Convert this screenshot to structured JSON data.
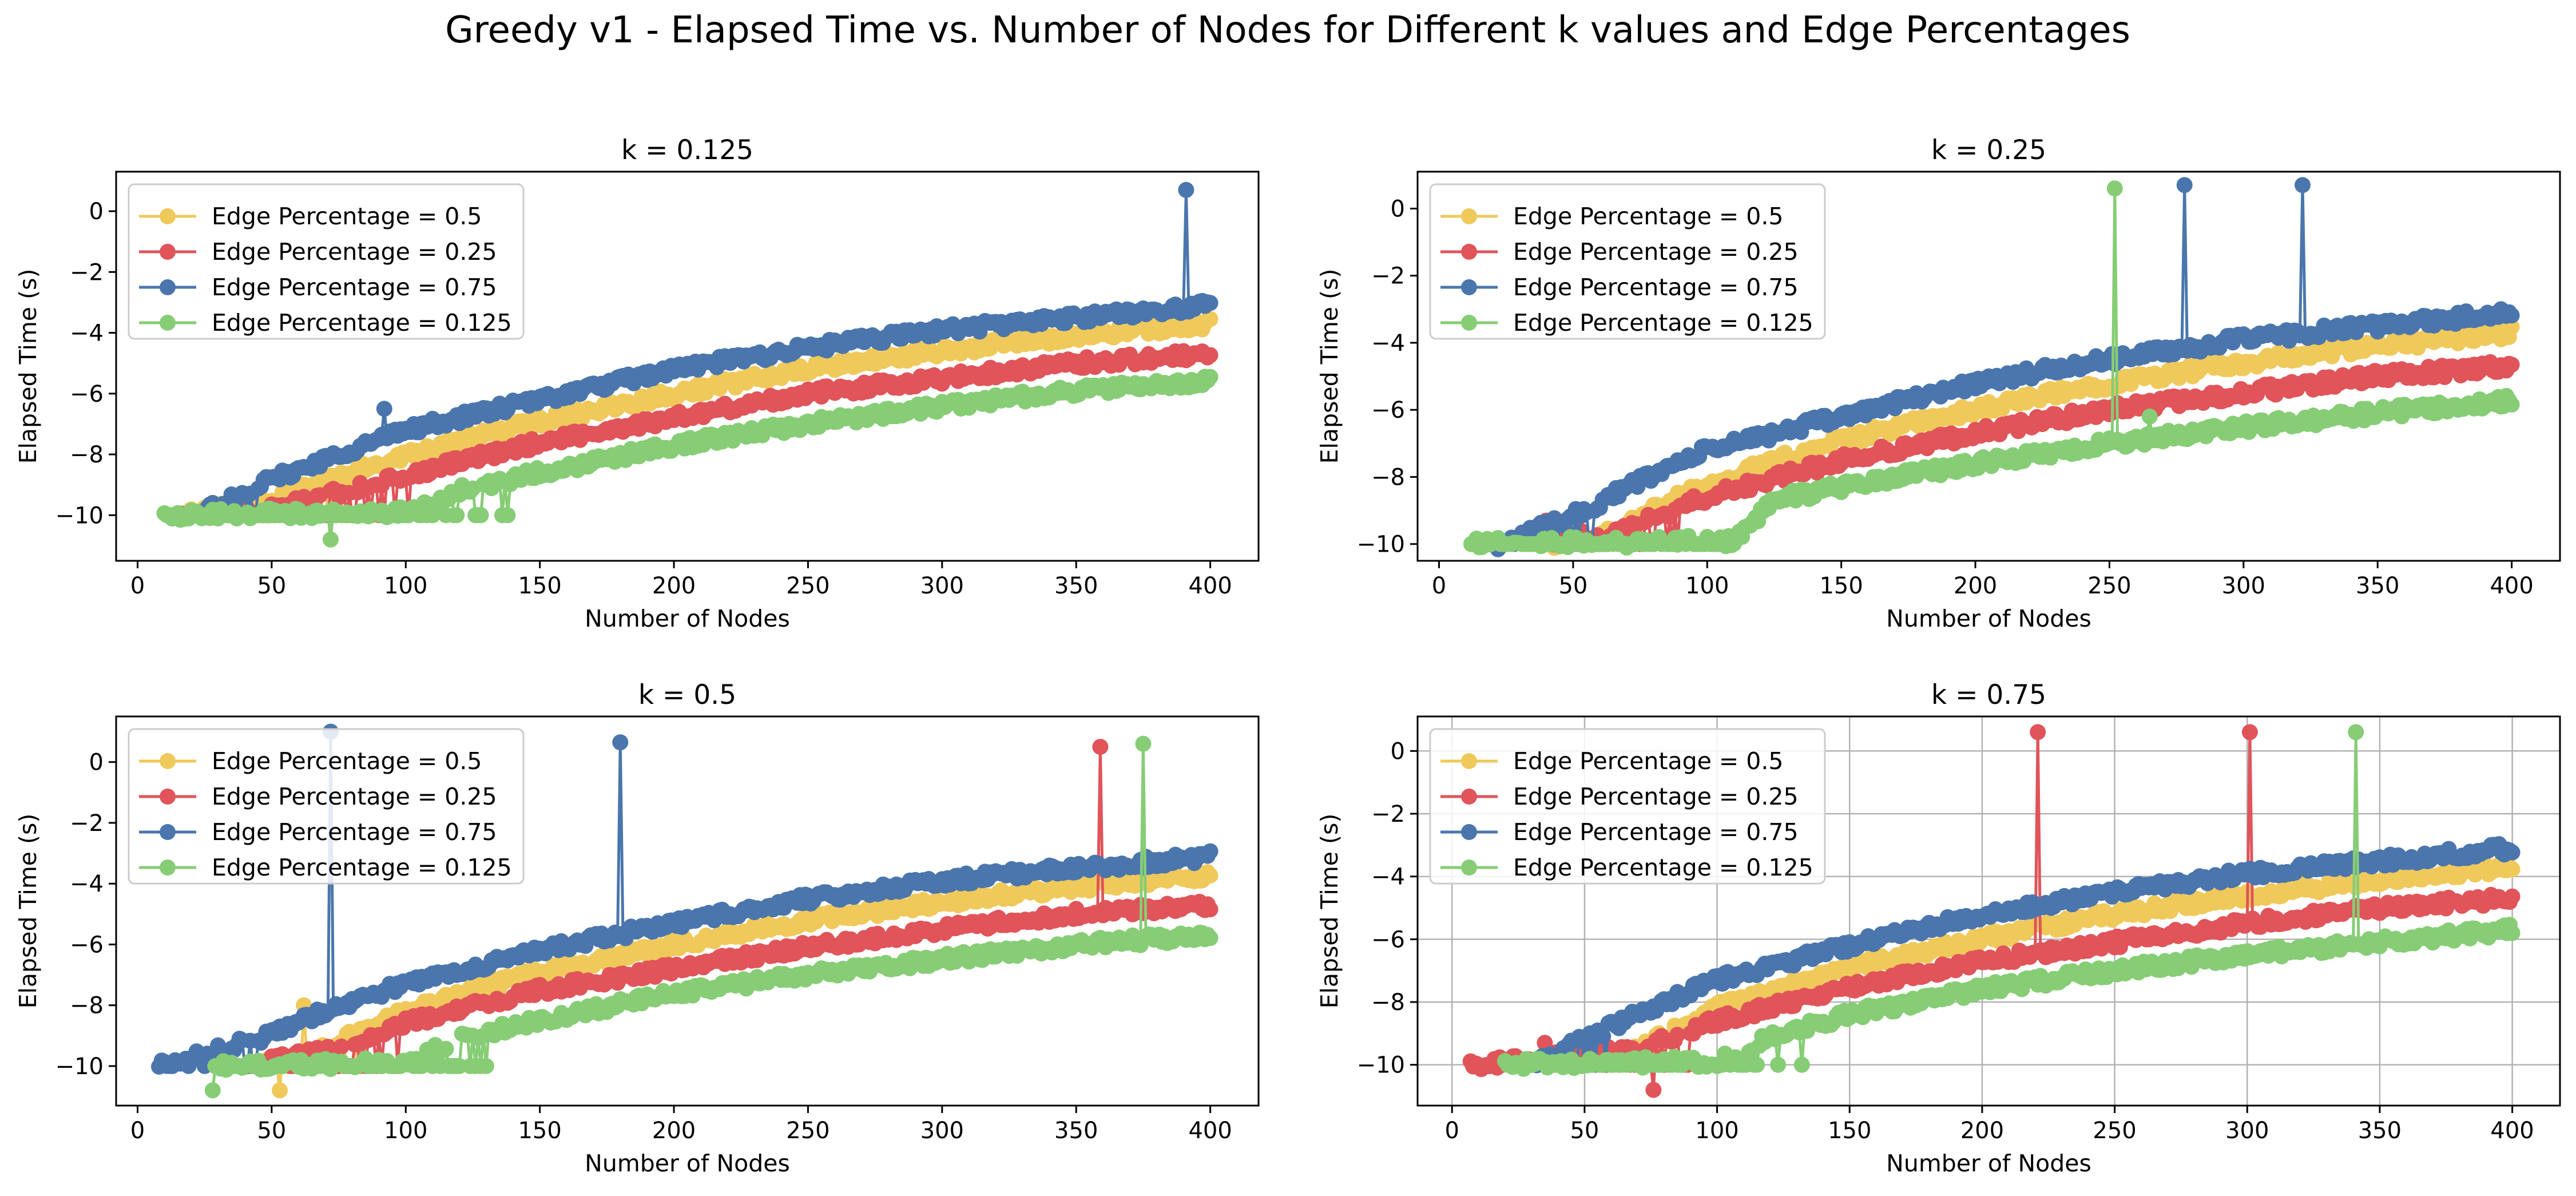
{
  "figure": {
    "title": "Greedy v1 - Elapsed Time vs. Number of Nodes for Different k values and Edge Percentages"
  },
  "colors": {
    "Edge Percentage = 0.5": "#f0c95b",
    "Edge Percentage = 0.25": "#e0545a",
    "Edge Percentage = 0.75": "#4a76ad",
    "Edge Percentage = 0.125": "#86cd75"
  },
  "chart_data": [
    {
      "type": "line",
      "title": "k = 0.125",
      "xlabel": "Number of Nodes",
      "ylabel": "Elapsed Time (s)",
      "xlim": [
        -8,
        418
      ],
      "ylim": [
        -11.5,
        1.3
      ],
      "xticks": [
        0,
        50,
        100,
        150,
        200,
        250,
        300,
        350,
        400
      ],
      "yticks": [
        -10,
        -8,
        -6,
        -4,
        -2,
        0
      ],
      "grid": false,
      "legend": "upper left",
      "markers": "circle",
      "series": [
        {
          "name": "Edge Percentage = 0.5",
          "x_range": [
            13,
            400
          ],
          "curve": [
            [
              13,
              -10
            ],
            [
              50,
              -9.5
            ],
            [
              100,
              -8.0
            ],
            [
              150,
              -6.9
            ],
            [
              200,
              -6.0
            ],
            [
              250,
              -5.2
            ],
            [
              300,
              -4.6
            ],
            [
              350,
              -4.1
            ],
            [
              400,
              -3.7
            ]
          ],
          "noise_floor_until": 75,
          "spikes": []
        },
        {
          "name": "Edge Percentage = 0.25",
          "x_range": [
            16,
            400
          ],
          "curve": [
            [
              16,
              -10
            ],
            [
              50,
              -9.8
            ],
            [
              100,
              -8.7
            ],
            [
              150,
              -7.6
            ],
            [
              200,
              -6.8
            ],
            [
              250,
              -6.0
            ],
            [
              300,
              -5.5
            ],
            [
              350,
              -5.0
            ],
            [
              400,
              -4.7
            ]
          ],
          "noise_floor_until": 105,
          "spikes": []
        },
        {
          "name": "Edge Percentage = 0.75",
          "x_range": [
            22,
            400
          ],
          "curve": [
            [
              22,
              -10
            ],
            [
              45,
              -9.0
            ],
            [
              75,
              -8.0
            ],
            [
              100,
              -7.2
            ],
            [
              150,
              -6.2
            ],
            [
              200,
              -5.2
            ],
            [
              250,
              -4.5
            ],
            [
              300,
              -3.9
            ],
            [
              350,
              -3.5
            ],
            [
              400,
              -3.1
            ]
          ],
          "noise_floor_until": 50,
          "spikes": [
            [
              92,
              -6.5
            ],
            [
              391,
              0.7
            ]
          ]
        },
        {
          "name": "Edge Percentage = 0.125",
          "x_range": [
            10,
            400
          ],
          "curve": [
            [
              10,
              -10
            ],
            [
              100,
              -9.9
            ],
            [
              120,
              -9.2
            ],
            [
              150,
              -8.6
            ],
            [
              200,
              -7.7
            ],
            [
              250,
              -7.0
            ],
            [
              300,
              -6.4
            ],
            [
              350,
              -5.9
            ],
            [
              400,
              -5.6
            ]
          ],
          "noise_floor_until": 140,
          "spikes": [
            [
              72,
              -10.8
            ]
          ]
        }
      ]
    },
    {
      "type": "line",
      "title": "k = 0.25",
      "xlabel": "Number of Nodes",
      "ylabel": "Elapsed Time (s)",
      "xlim": [
        -8,
        418
      ],
      "ylim": [
        -10.5,
        1.1
      ],
      "xticks": [
        0,
        50,
        100,
        150,
        200,
        250,
        300,
        350,
        400
      ],
      "yticks": [
        -10,
        -8,
        -6,
        -4,
        -2,
        0
      ],
      "grid": false,
      "legend": "upper left",
      "markers": "circle",
      "series": [
        {
          "name": "Edge Percentage = 0.5",
          "x_range": [
            38,
            400
          ],
          "curve": [
            [
              38,
              -10
            ],
            [
              60,
              -9.8
            ],
            [
              100,
              -8.2
            ],
            [
              150,
              -6.9
            ],
            [
              200,
              -6.0
            ],
            [
              250,
              -5.2
            ],
            [
              300,
              -4.6
            ],
            [
              350,
              -4.1
            ],
            [
              400,
              -3.7
            ]
          ],
          "noise_floor_until": 80,
          "spikes": []
        },
        {
          "name": "Edge Percentage = 0.25",
          "x_range": [
            40,
            400
          ],
          "curve": [
            [
              40,
              -10
            ],
            [
              70,
              -9.5
            ],
            [
              100,
              -8.6
            ],
            [
              150,
              -7.5
            ],
            [
              200,
              -6.7
            ],
            [
              250,
              -6.0
            ],
            [
              300,
              -5.5
            ],
            [
              350,
              -5.0
            ],
            [
              400,
              -4.7
            ]
          ],
          "noise_floor_until": 90,
          "spikes": [
            [
              40,
              -9.3
            ]
          ]
        },
        {
          "name": "Edge Percentage = 0.75",
          "x_range": [
            22,
            400
          ],
          "curve": [
            [
              22,
              -10
            ],
            [
              55,
              -9.0
            ],
            [
              75,
              -8.1
            ],
            [
              100,
              -7.2
            ],
            [
              150,
              -6.2
            ],
            [
              200,
              -5.2
            ],
            [
              250,
              -4.5
            ],
            [
              300,
              -3.9
            ],
            [
              350,
              -3.5
            ],
            [
              400,
              -3.1
            ]
          ],
          "noise_floor_until": 60,
          "spikes": [
            [
              278,
              0.7
            ],
            [
              322,
              0.7
            ]
          ]
        },
        {
          "name": "Edge Percentage = 0.125",
          "x_range": [
            12,
            400
          ],
          "curve": [
            [
              12,
              -10
            ],
            [
              110,
              -9.9
            ],
            [
              125,
              -8.7
            ],
            [
              150,
              -8.3
            ],
            [
              200,
              -7.6
            ],
            [
              250,
              -7.0
            ],
            [
              300,
              -6.5
            ],
            [
              350,
              -6.1
            ],
            [
              400,
              -5.7
            ]
          ],
          "noise_floor_until": 112,
          "spikes": [
            [
              252,
              0.6
            ],
            [
              265,
              -6.2
            ]
          ]
        }
      ]
    },
    {
      "type": "line",
      "title": "k = 0.5",
      "xlabel": "Number of Nodes",
      "ylabel": "Elapsed Time (s)",
      "xlim": [
        -8,
        418
      ],
      "ylim": [
        -11.3,
        1.5
      ],
      "xticks": [
        0,
        50,
        100,
        150,
        200,
        250,
        300,
        350,
        400
      ],
      "yticks": [
        -10,
        -8,
        -6,
        -4,
        -2,
        0
      ],
      "grid": false,
      "legend": "upper left",
      "markers": "circle",
      "series": [
        {
          "name": "Edge Percentage = 0.5",
          "x_range": [
            40,
            400
          ],
          "curve": [
            [
              40,
              -10
            ],
            [
              60,
              -9.8
            ],
            [
              100,
              -8.2
            ],
            [
              150,
              -6.9
            ],
            [
              200,
              -6.0
            ],
            [
              250,
              -5.2
            ],
            [
              300,
              -4.6
            ],
            [
              350,
              -4.1
            ],
            [
              400,
              -3.7
            ]
          ],
          "noise_floor_until": 85,
          "spikes": [
            [
              53,
              -10.8
            ],
            [
              62,
              -8.0
            ]
          ]
        },
        {
          "name": "Edge Percentage = 0.25",
          "x_range": [
            40,
            400
          ],
          "curve": [
            [
              40,
              -10
            ],
            [
              70,
              -9.5
            ],
            [
              100,
              -8.6
            ],
            [
              150,
              -7.5
            ],
            [
              200,
              -6.8
            ],
            [
              250,
              -6.1
            ],
            [
              300,
              -5.5
            ],
            [
              350,
              -5.0
            ],
            [
              400,
              -4.7
            ]
          ],
          "noise_floor_until": 100,
          "spikes": [
            [
              359,
              0.5
            ]
          ]
        },
        {
          "name": "Edge Percentage = 0.75",
          "x_range": [
            8,
            400
          ],
          "curve": [
            [
              8,
              -10
            ],
            [
              45,
              -9.1
            ],
            [
              75,
              -8.0
            ],
            [
              100,
              -7.3
            ],
            [
              150,
              -6.2
            ],
            [
              200,
              -5.3
            ],
            [
              250,
              -4.5
            ],
            [
              300,
              -3.9
            ],
            [
              350,
              -3.5
            ],
            [
              400,
              -3.1
            ]
          ],
          "noise_floor_until": 45,
          "spikes": [
            [
              72,
              1.0
            ],
            [
              180,
              0.65
            ]
          ]
        },
        {
          "name": "Edge Percentage = 0.125",
          "x_range": [
            28,
            400
          ],
          "curve": [
            [
              28,
              -10
            ],
            [
              100,
              -9.9
            ],
            [
              120,
              -9.1
            ],
            [
              150,
              -8.5
            ],
            [
              200,
              -7.6
            ],
            [
              250,
              -7.0
            ],
            [
              300,
              -6.5
            ],
            [
              350,
              -6.0
            ],
            [
              400,
              -5.7
            ]
          ],
          "noise_floor_until": 135,
          "spikes": [
            [
              28,
              -10.8
            ],
            [
              375,
              0.6
            ]
          ]
        }
      ]
    },
    {
      "type": "line",
      "title": "k = 0.75",
      "xlabel": "Number of Nodes",
      "ylabel": "Elapsed Time (s)",
      "xlim": [
        -13,
        418
      ],
      "ylim": [
        -11.3,
        1.1
      ],
      "xticks": [
        0,
        50,
        100,
        150,
        200,
        250,
        300,
        350,
        400
      ],
      "yticks": [
        -10,
        -8,
        -6,
        -4,
        -2,
        0
      ],
      "grid": true,
      "legend": "upper left",
      "markers": "circle",
      "series": [
        {
          "name": "Edge Percentage = 0.5",
          "x_range": [
            45,
            400
          ],
          "curve": [
            [
              45,
              -10
            ],
            [
              70,
              -9.5
            ],
            [
              100,
              -8.2
            ],
            [
              150,
              -6.9
            ],
            [
              200,
              -6.0
            ],
            [
              250,
              -5.2
            ],
            [
              300,
              -4.6
            ],
            [
              350,
              -4.1
            ],
            [
              400,
              -3.7
            ]
          ],
          "noise_floor_until": 85,
          "spikes": []
        },
        {
          "name": "Edge Percentage = 0.25",
          "x_range": [
            7,
            400
          ],
          "curve": [
            [
              7,
              -10
            ],
            [
              70,
              -9.5
            ],
            [
              100,
              -8.6
            ],
            [
              150,
              -7.5
            ],
            [
              200,
              -6.7
            ],
            [
              250,
              -6.1
            ],
            [
              300,
              -5.5
            ],
            [
              350,
              -5.0
            ],
            [
              400,
              -4.7
            ]
          ],
          "noise_floor_until": 95,
          "spikes": [
            [
              35,
              -9.3
            ],
            [
              76,
              -10.8
            ],
            [
              221,
              0.6
            ],
            [
              301,
              0.6
            ]
          ]
        },
        {
          "name": "Edge Percentage = 0.75",
          "x_range": [
            30,
            400
          ],
          "curve": [
            [
              30,
              -10
            ],
            [
              55,
              -9.0
            ],
            [
              75,
              -8.2
            ],
            [
              100,
              -7.3
            ],
            [
              150,
              -6.2
            ],
            [
              200,
              -5.2
            ],
            [
              250,
              -4.5
            ],
            [
              300,
              -3.9
            ],
            [
              350,
              -3.5
            ],
            [
              400,
              -3.1
            ]
          ],
          "noise_floor_until": 60,
          "spikes": []
        },
        {
          "name": "Edge Percentage = 0.125",
          "x_range": [
            20,
            400
          ],
          "curve": [
            [
              20,
              -10
            ],
            [
              100,
              -9.9
            ],
            [
              120,
              -9.1
            ],
            [
              150,
              -8.4
            ],
            [
              200,
              -7.6
            ],
            [
              250,
              -7.0
            ],
            [
              300,
              -6.5
            ],
            [
              350,
              -6.1
            ],
            [
              400,
              -5.7
            ]
          ],
          "noise_floor_until": 135,
          "spikes": [
            [
              341,
              0.6
            ]
          ]
        }
      ]
    }
  ]
}
